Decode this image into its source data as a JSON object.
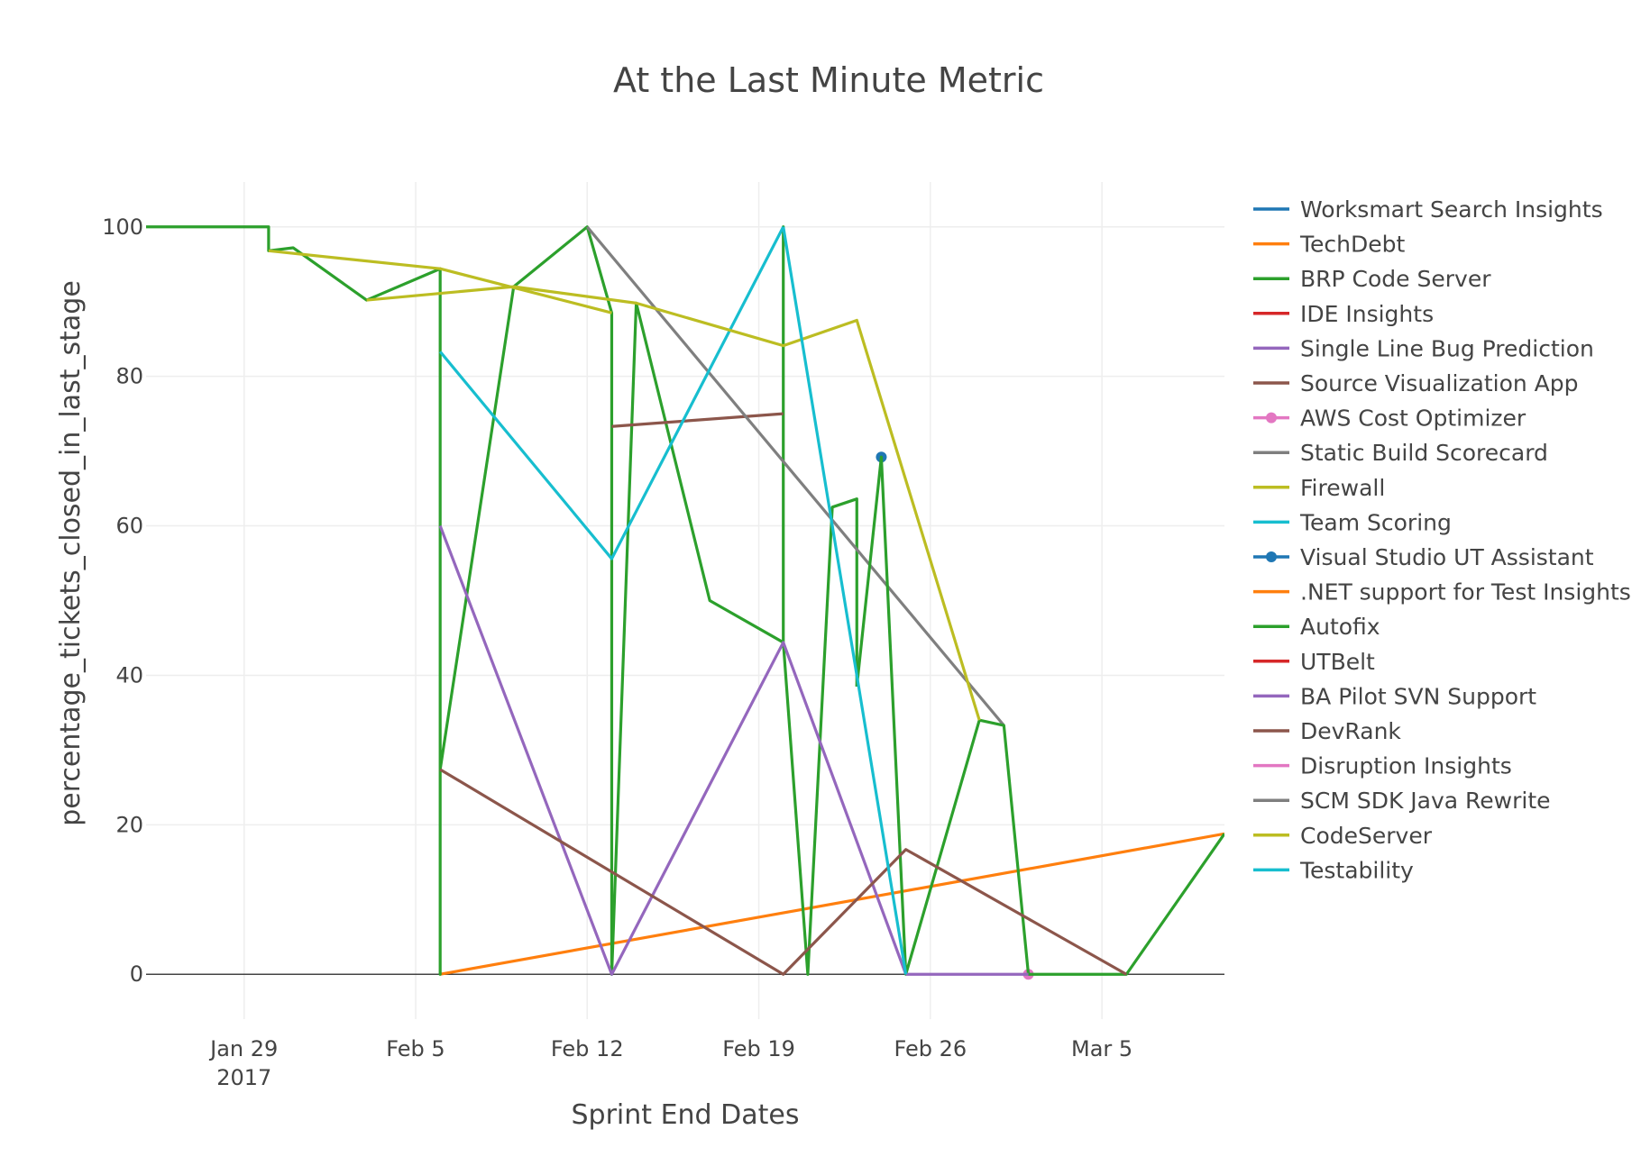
{
  "chart_data": {
    "type": "line",
    "title": "At the Last Minute Metric",
    "xlabel": "Sprint End Dates",
    "ylabel": "percentage_tickets_closed_in_last_stage",
    "xlim": [
      "2017-01-25",
      "2017-03-10"
    ],
    "ylim": [
      -6,
      106
    ],
    "x_ticks": [
      {
        "date": "2017-01-29",
        "label": "Jan 29",
        "sublabel": "2017"
      },
      {
        "date": "2017-02-05",
        "label": "Feb 5"
      },
      {
        "date": "2017-02-12",
        "label": "Feb 12"
      },
      {
        "date": "2017-02-19",
        "label": "Feb 19"
      },
      {
        "date": "2017-02-26",
        "label": "Feb 26"
      },
      {
        "date": "2017-03-05",
        "label": "Mar 5"
      }
    ],
    "y_ticks": [
      0,
      20,
      40,
      60,
      80,
      100
    ],
    "grid": true,
    "legend_position": "right",
    "series": [
      {
        "name": "Worksmart Search Insights",
        "color": "#1f77b4",
        "marker": false,
        "x": [],
        "y": []
      },
      {
        "name": "TechDebt",
        "color": "#ff7f0e",
        "marker": false,
        "x": [
          "2017-02-06",
          "2017-03-10"
        ],
        "y": [
          0,
          18.8
        ]
      },
      {
        "name": "BRP Code Server",
        "color": "#2ca02c",
        "marker": false,
        "x": [
          "2017-01-25",
          "2017-01-30",
          "2017-01-30",
          "2017-01-31",
          "2017-02-03",
          "2017-02-06",
          "2017-02-06",
          "2017-02-06",
          "2017-02-09",
          "2017-02-12",
          "2017-02-13",
          "2017-02-13",
          "2017-02-14",
          "2017-02-17",
          "2017-02-20",
          "2017-02-20",
          "2017-02-20",
          "2017-02-21",
          "2017-02-22",
          "2017-02-23",
          "2017-02-23"
        ],
        "y": [
          100,
          100,
          96.8,
          97.2,
          90.2,
          94.4,
          0,
          27.4,
          92.0,
          100,
          88.5,
          0,
          89.8,
          50.0,
          44.4,
          100,
          44.4,
          0,
          62.5,
          63.6,
          38.5
        ]
      },
      {
        "name": "IDE Insights",
        "color": "#d62728",
        "marker": false,
        "x": [],
        "y": []
      },
      {
        "name": "Single Line Bug Prediction",
        "color": "#9467bd",
        "marker": false,
        "x": [
          "2017-02-06",
          "2017-02-13",
          "2017-02-20",
          "2017-02-25"
        ],
        "y": [
          60.0,
          0,
          44.4,
          0
        ]
      },
      {
        "name": "Source Visualization App",
        "color": "#8c564b",
        "marker": false,
        "x": [
          "2017-02-13",
          "2017-02-20"
        ],
        "y": [
          73.3,
          75.0
        ]
      },
      {
        "name": "AWS Cost Optimizer",
        "color": "#e377c2",
        "marker": true,
        "x": [
          "2017-03-02"
        ],
        "y": [
          0
        ]
      },
      {
        "name": "Static Build Scorecard",
        "color": "#7f7f7f",
        "marker": false,
        "x": [
          "2017-02-12",
          "2017-03-01"
        ],
        "y": [
          100,
          33.3
        ]
      },
      {
        "name": "Firewall",
        "color": "#bcbd22",
        "marker": false,
        "x": [
          "2017-01-30",
          "2017-02-06",
          "2017-02-13"
        ],
        "y": [
          96.8,
          94.4,
          88.5
        ]
      },
      {
        "name": "Team Scoring",
        "color": "#17becf",
        "marker": false,
        "x": [
          "2017-02-06",
          "2017-02-13",
          "2017-02-20"
        ],
        "y": [
          83.3,
          55.6,
          100
        ]
      },
      {
        "name": "Visual Studio UT Assistant",
        "color": "#1f77b4",
        "marker": true,
        "x": [
          "2017-02-24"
        ],
        "y": [
          69.2
        ]
      },
      {
        "name": ".NET support for Test Insights",
        "color": "#ff7f0e",
        "marker": false,
        "x": [],
        "y": []
      },
      {
        "name": "Autofix",
        "color": "#2ca02c",
        "marker": false,
        "x": [
          "2017-02-23",
          "2017-02-24",
          "2017-02-25",
          "2017-02-28",
          "2017-03-01",
          "2017-03-02",
          "2017-03-06",
          "2017-03-10"
        ],
        "y": [
          38.5,
          69.2,
          0,
          34.0,
          33.3,
          0,
          0,
          18.8
        ]
      },
      {
        "name": "UTBelt",
        "color": "#d62728",
        "marker": false,
        "x": [],
        "y": []
      },
      {
        "name": "BA Pilot SVN Support",
        "color": "#9467bd",
        "marker": false,
        "x": [
          "2017-02-25",
          "2017-03-02"
        ],
        "y": [
          0,
          0
        ]
      },
      {
        "name": "DevRank",
        "color": "#8c564b",
        "marker": false,
        "x": [
          "2017-02-06",
          "2017-02-20",
          "2017-02-25",
          "2017-03-06"
        ],
        "y": [
          27.4,
          0,
          16.7,
          0
        ]
      },
      {
        "name": "Disruption Insights",
        "color": "#e377c2",
        "marker": false,
        "x": [],
        "y": []
      },
      {
        "name": "SCM SDK Java Rewrite",
        "color": "#7f7f7f",
        "marker": false,
        "x": [],
        "y": []
      },
      {
        "name": "CodeServer",
        "color": "#bcbd22",
        "marker": false,
        "x": [
          "2017-02-03",
          "2017-02-09",
          "2017-02-14",
          "2017-02-20",
          "2017-02-23",
          "2017-02-28"
        ],
        "y": [
          90.2,
          92.0,
          89.8,
          84.1,
          87.5,
          34.0
        ]
      },
      {
        "name": "Testability",
        "color": "#17becf",
        "marker": false,
        "x": [
          "2017-02-20",
          "2017-02-25"
        ],
        "y": [
          100,
          0
        ]
      }
    ]
  }
}
